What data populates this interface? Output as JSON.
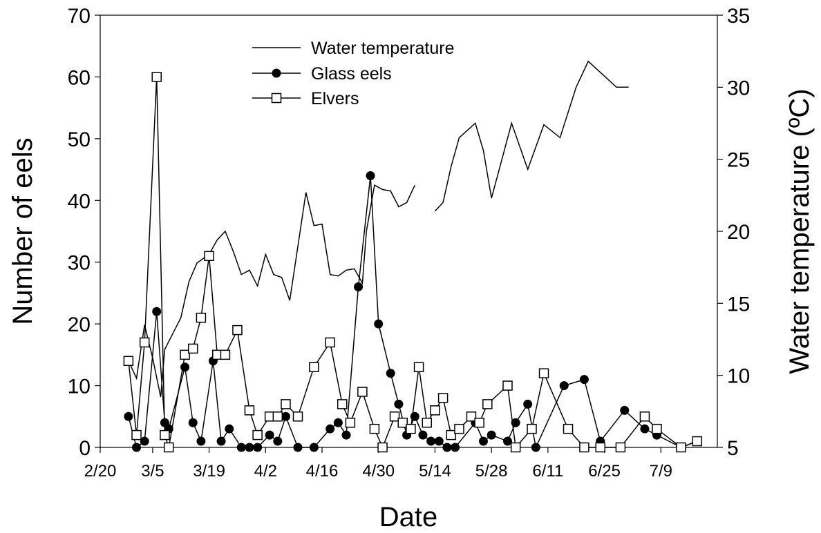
{
  "chart_data": {
    "type": "line",
    "xlabel": "Date",
    "ylabel_left": "Number of eels",
    "ylabel_right": "Water temperature (ºC)",
    "x_tick_labels": [
      "2/20",
      "3/5",
      "3/19",
      "4/2",
      "4/16",
      "4/30",
      "5/14",
      "5/28",
      "6/11",
      "6/25",
      "7/9"
    ],
    "x_tick_days": [
      0,
      13,
      27,
      41,
      55,
      69,
      83,
      97,
      111,
      125,
      139
    ],
    "xlim_days": [
      0,
      153
    ],
    "ylim_left": [
      0,
      70
    ],
    "ylim_right": [
      5,
      35
    ],
    "y_ticks_left": [
      0,
      10,
      20,
      30,
      40,
      50,
      60,
      70
    ],
    "y_ticks_right": [
      5,
      10,
      15,
      20,
      25,
      30,
      35
    ],
    "legend": {
      "position": "top-center",
      "entries": [
        "Water temperature",
        "Glass eels",
        "Elvers"
      ]
    },
    "series": [
      {
        "name": "Water temperature",
        "axis": "right",
        "marker": "none",
        "segments": [
          [
            [
              7,
              11
            ],
            [
              9,
              9.8
            ],
            [
              11,
              13.5
            ],
            [
              13,
              11.2
            ],
            [
              15,
              8.5
            ],
            [
              16,
              11.8
            ],
            [
              20,
              14
            ],
            [
              22,
              16.5
            ],
            [
              24,
              17.8
            ],
            [
              27,
              18.4
            ],
            [
              29,
              19.4
            ],
            [
              31,
              20
            ],
            [
              33,
              18.6
            ],
            [
              35,
              17
            ],
            [
              37,
              17.3
            ],
            [
              39,
              16.2
            ],
            [
              41,
              18.4
            ],
            [
              43,
              17
            ],
            [
              45,
              16.8
            ],
            [
              47,
              15.2
            ],
            [
              51,
              22.7
            ],
            [
              53,
              20.4
            ],
            [
              55,
              20.5
            ],
            [
              57,
              17
            ],
            [
              59,
              16.9
            ],
            [
              61,
              17.3
            ],
            [
              63,
              17.4
            ],
            [
              65,
              16.4
            ],
            [
              66,
              20
            ],
            [
              68,
              23.2
            ],
            [
              70,
              22.9
            ],
            [
              72,
              22.8
            ],
            [
              74,
              21.7
            ],
            [
              76,
              22
            ],
            [
              78,
              23.2
            ]
          ],
          [
            [
              83,
              21.4
            ],
            [
              85,
              22
            ],
            [
              87,
              24.5
            ],
            [
              89,
              26.5
            ],
            [
              91,
              27
            ],
            [
              93,
              27.5
            ],
            [
              95,
              25.6
            ],
            [
              97,
              22.3
            ],
            [
              102,
              27.5
            ],
            [
              106,
              24.3
            ],
            [
              110,
              27.4
            ],
            [
              114,
              26.5
            ],
            [
              118,
              30
            ],
            [
              121,
              31.8
            ],
            [
              128,
              30
            ],
            [
              131,
              30
            ]
          ]
        ]
      },
      {
        "name": "Glass eels",
        "axis": "left",
        "marker": "filled-circle",
        "points": [
          [
            7,
            5
          ],
          [
            9,
            0
          ],
          [
            11,
            1
          ],
          [
            14,
            22
          ],
          [
            16,
            4
          ],
          [
            17,
            3
          ],
          [
            21,
            13
          ],
          [
            23,
            4
          ],
          [
            25,
            1
          ],
          [
            28,
            14
          ],
          [
            30,
            1
          ],
          [
            32,
            3
          ],
          [
            35,
            0
          ],
          [
            37,
            0
          ],
          [
            39,
            0
          ],
          [
            42,
            2
          ],
          [
            44,
            1
          ],
          [
            46,
            5
          ],
          [
            49,
            0
          ],
          [
            53,
            0
          ],
          [
            57,
            3
          ],
          [
            59,
            4
          ],
          [
            61,
            2
          ],
          [
            64,
            26
          ],
          [
            67,
            44
          ],
          [
            69,
            20
          ],
          [
            72,
            12
          ],
          [
            74,
            7
          ],
          [
            76,
            2
          ],
          [
            78,
            5
          ],
          [
            80,
            2
          ],
          [
            82,
            1
          ],
          [
            84,
            1
          ],
          [
            86,
            0
          ],
          [
            88,
            0
          ],
          [
            93,
            4
          ],
          [
            95,
            1
          ],
          [
            97,
            2
          ],
          [
            101,
            1
          ],
          [
            103,
            4
          ],
          [
            106,
            7
          ],
          [
            108,
            0
          ],
          [
            115,
            10
          ],
          [
            120,
            11
          ],
          [
            124,
            1
          ],
          [
            130,
            6
          ],
          [
            135,
            3
          ],
          [
            138,
            2
          ],
          [
            144,
            0
          ],
          [
            148,
            1
          ]
        ]
      },
      {
        "name": "Elvers",
        "axis": "left",
        "marker": "open-square",
        "points": [
          [
            7,
            14
          ],
          [
            9,
            2
          ],
          [
            11,
            17
          ],
          [
            14,
            60
          ],
          [
            16,
            2
          ],
          [
            17,
            0
          ],
          [
            21,
            15
          ],
          [
            23,
            16
          ],
          [
            25,
            21
          ],
          [
            27,
            31
          ],
          [
            29,
            15
          ],
          [
            31,
            15
          ],
          [
            34,
            19
          ],
          [
            37,
            6
          ],
          [
            39,
            2
          ],
          [
            42,
            5
          ],
          [
            44,
            5
          ],
          [
            46,
            7
          ],
          [
            49,
            5
          ],
          [
            53,
            13
          ],
          [
            57,
            17
          ],
          [
            60,
            7
          ],
          [
            62,
            4
          ],
          [
            65,
            9
          ],
          [
            68,
            3
          ],
          [
            70,
            0
          ],
          [
            73,
            5
          ],
          [
            75,
            4
          ],
          [
            77,
            3
          ],
          [
            79,
            13
          ],
          [
            81,
            4
          ],
          [
            83,
            6
          ],
          [
            85,
            8
          ],
          [
            87,
            2
          ],
          [
            89,
            3
          ],
          [
            92,
            5
          ],
          [
            94,
            4
          ],
          [
            96,
            7
          ],
          [
            101,
            10
          ],
          [
            103,
            0
          ],
          [
            107,
            3
          ],
          [
            110,
            12
          ],
          [
            116,
            3
          ],
          [
            120,
            0
          ],
          [
            124,
            0
          ],
          [
            129,
            0
          ],
          [
            135,
            5
          ],
          [
            138,
            3
          ],
          [
            144,
            0
          ],
          [
            148,
            1
          ]
        ]
      }
    ]
  }
}
